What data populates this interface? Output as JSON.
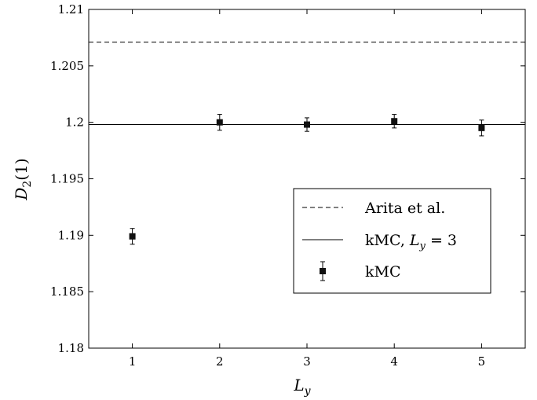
{
  "chart_data": {
    "type": "scatter",
    "xlabel": "L_y",
    "ylabel": "D_2(1)",
    "xlim": [
      0.5,
      5.5
    ],
    "ylim": [
      1.18,
      1.21
    ],
    "xticks": [
      1,
      2,
      3,
      4,
      5
    ],
    "yticks": [
      1.18,
      1.185,
      1.19,
      1.195,
      1.2,
      1.205,
      1.21
    ],
    "ytick_labels": [
      "1.18",
      "1.185",
      "1.19",
      "1.195",
      "1.2",
      "1.205",
      "1.21"
    ],
    "grid": false,
    "legend_position": "right-middle",
    "series": [
      {
        "name": "Arita et al.",
        "kind": "hline",
        "style": "dashed",
        "y": 1.2071
      },
      {
        "name": "kMC, L_y = 3",
        "kind": "hline",
        "style": "solid",
        "y": 1.1998
      },
      {
        "name": "kMC",
        "kind": "errorbar",
        "marker": "square",
        "x": [
          1,
          2,
          3,
          4,
          5
        ],
        "y": [
          1.1899,
          1.2,
          1.1998,
          1.2001,
          1.1995
        ],
        "yerr": [
          0.0007,
          0.0007,
          0.0006,
          0.0006,
          0.0007
        ]
      }
    ],
    "colors": {
      "line": "#000000",
      "marker": "#111111"
    }
  },
  "legend": {
    "entries": [
      {
        "label": "Arita et al.",
        "style": "dashed"
      },
      {
        "label": "kMC, ",
        "math_symbol": "L",
        "math_sub": "y",
        "math_tail": " = 3",
        "style": "solid"
      },
      {
        "label": "kMC",
        "style": "errorbar"
      }
    ]
  },
  "axis_labels": {
    "x_main": "L",
    "x_sub": "y",
    "y_main": "D",
    "y_sub": "2",
    "y_tail": "(1)"
  }
}
